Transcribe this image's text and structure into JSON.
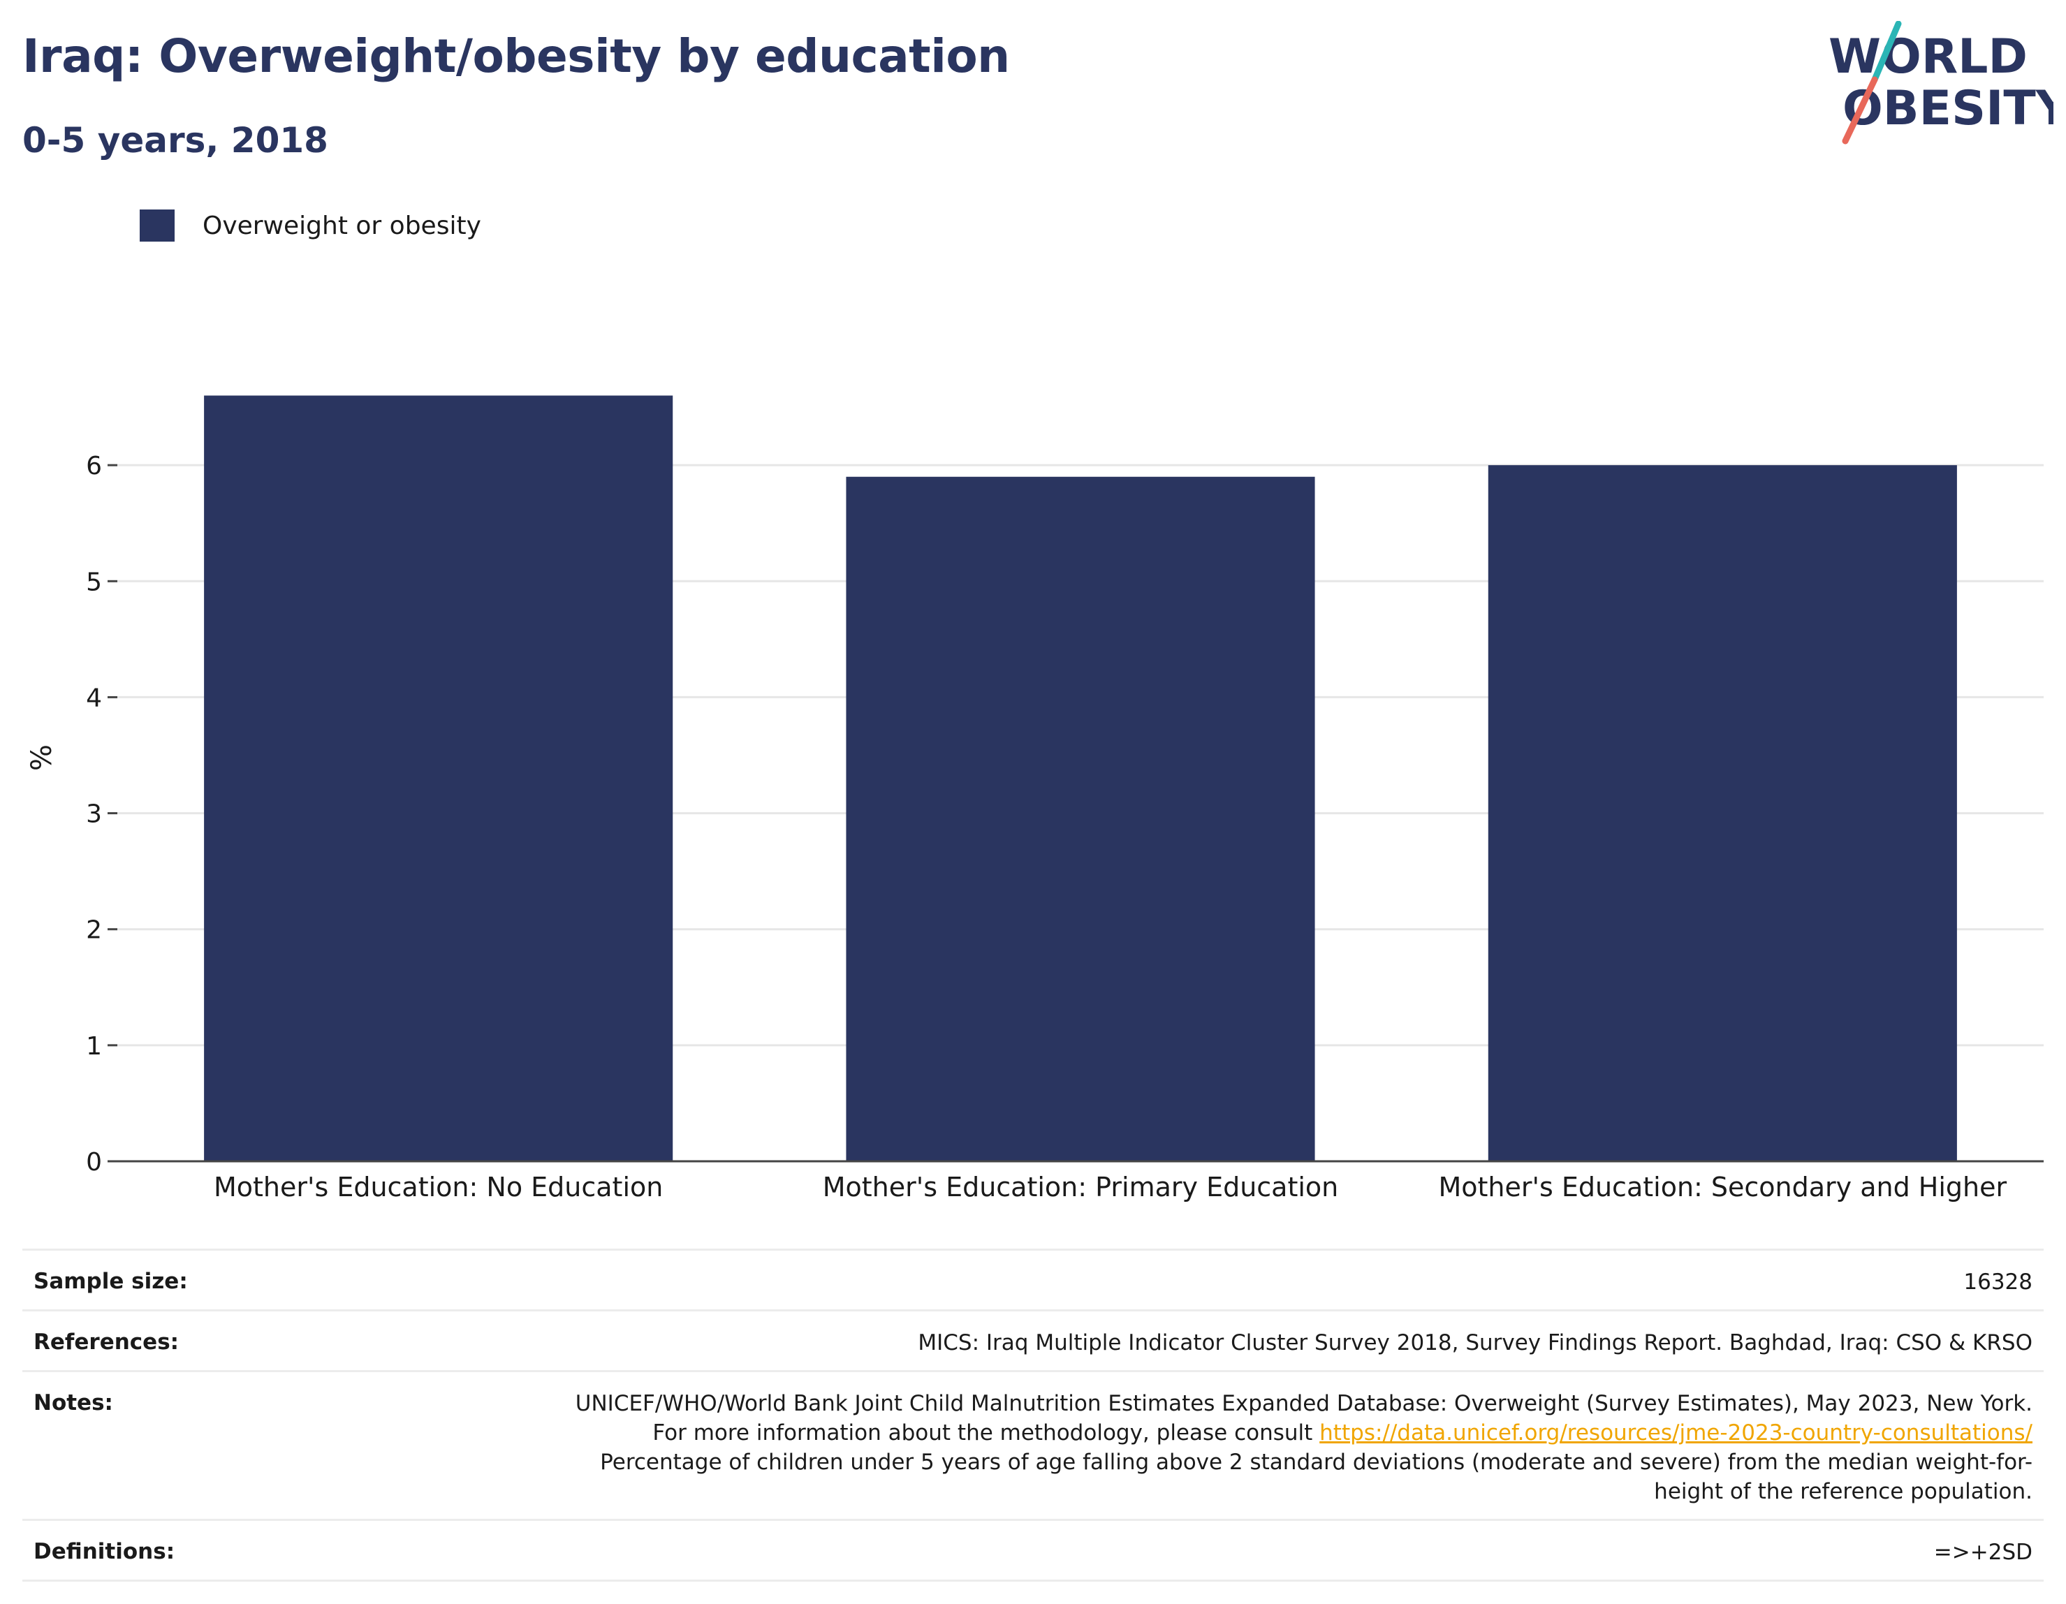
{
  "header": {
    "title": "Iraq: Overweight/obesity by education",
    "subtitle": "0-5 years, 2018"
  },
  "logo": {
    "line1": "WORLD",
    "line2": "OBESITY",
    "colors": {
      "navy": "#2a3560",
      "teal": "#2bb5b5",
      "coral": "#e8685a"
    }
  },
  "colors": {
    "bar": "#2a3560",
    "grid": "#e6e6e6",
    "axis": "#444444",
    "link": "#f0a500"
  },
  "chart_data": {
    "type": "bar",
    "categories": [
      "Mother's Education: No Education",
      "Mother's Education: Primary Education",
      "Mother's Education: Secondary and Higher"
    ],
    "series": [
      {
        "name": "Overweight or obesity",
        "values": [
          6.6,
          5.9,
          6.0
        ]
      }
    ],
    "title": "",
    "xlabel": "",
    "ylabel": "%",
    "ylim": [
      0,
      7
    ],
    "yticks": [
      0,
      1,
      2,
      3,
      4,
      5,
      6
    ],
    "grid": true,
    "legend": "top-left"
  },
  "info": {
    "sample_size": {
      "label": "Sample size:",
      "value": "16328"
    },
    "references": {
      "label": "References:",
      "value": "MICS: Iraq Multiple Indicator Cluster Survey 2018, Survey Findings Report. Baghdad, Iraq: CSO & KRSO"
    },
    "notes": {
      "label": "Notes:",
      "text_before": "UNICEF/WHO/World Bank Joint Child Malnutrition Estimates Expanded Database: Overweight (Survey Estimates), May 2023, New York. For more information about the methodology, please consult ",
      "link": "https://data.unicef.org/resources/jme-2023-country-consultations/",
      "text_after": "Percentage of children under 5 years of age falling above 2 standard deviations (moderate and severe) from the median weight-for-height of the reference population."
    },
    "definitions": {
      "label": "Definitions:",
      "value": "=>+2SD"
    }
  }
}
